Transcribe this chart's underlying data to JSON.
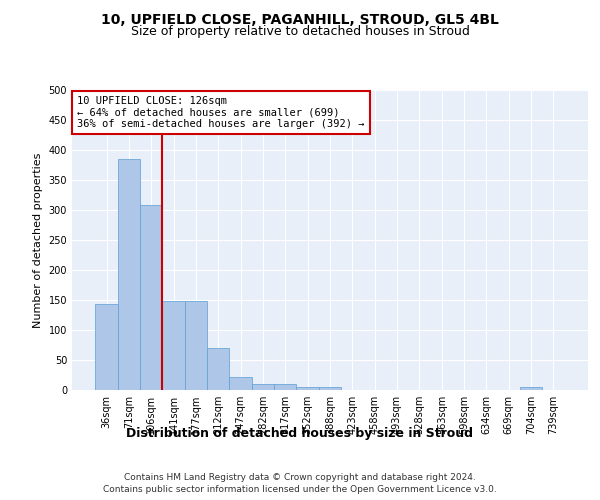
{
  "title1": "10, UPFIELD CLOSE, PAGANHILL, STROUD, GL5 4BL",
  "title2": "Size of property relative to detached houses in Stroud",
  "xlabel": "Distribution of detached houses by size in Stroud",
  "ylabel": "Number of detached properties",
  "footer1": "Contains HM Land Registry data © Crown copyright and database right 2024.",
  "footer2": "Contains public sector information licensed under the Open Government Licence v3.0.",
  "bar_labels": [
    "36sqm",
    "71sqm",
    "106sqm",
    "141sqm",
    "177sqm",
    "212sqm",
    "247sqm",
    "282sqm",
    "317sqm",
    "352sqm",
    "388sqm",
    "423sqm",
    "458sqm",
    "493sqm",
    "528sqm",
    "563sqm",
    "598sqm",
    "634sqm",
    "669sqm",
    "704sqm",
    "739sqm"
  ],
  "bar_values": [
    143,
    385,
    308,
    148,
    148,
    70,
    22,
    10,
    10,
    5,
    5,
    0,
    0,
    0,
    0,
    0,
    0,
    0,
    0,
    5,
    0
  ],
  "bar_color": "#aec6e8",
  "bar_edge_color": "#5a9fd4",
  "vline_x": 2.5,
  "vline_color": "#cc0000",
  "annotation_line1": "10 UPFIELD CLOSE: 126sqm",
  "annotation_line2": "← 64% of detached houses are smaller (699)",
  "annotation_line3": "36% of semi-detached houses are larger (392) →",
  "annotation_box_color": "#ffffff",
  "annotation_box_edge": "#cc0000",
  "ylim": [
    0,
    500
  ],
  "yticks": [
    0,
    50,
    100,
    150,
    200,
    250,
    300,
    350,
    400,
    450,
    500
  ],
  "background_color": "#e8eff8",
  "grid_color": "#ffffff",
  "title1_fontsize": 10,
  "title2_fontsize": 9,
  "xlabel_fontsize": 9,
  "ylabel_fontsize": 8,
  "tick_fontsize": 7,
  "annotation_fontsize": 7.5,
  "footer_fontsize": 6.5
}
